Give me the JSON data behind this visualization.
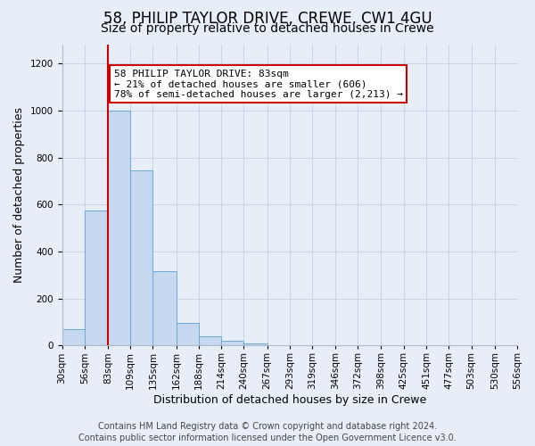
{
  "title": "58, PHILIP TAYLOR DRIVE, CREWE, CW1 4GU",
  "subtitle": "Size of property relative to detached houses in Crewe",
  "xlabel": "Distribution of detached houses by size in Crewe",
  "ylabel": "Number of detached properties",
  "bin_edges": [
    30,
    56,
    83,
    109,
    135,
    162,
    188,
    214,
    240,
    267,
    293,
    319,
    346,
    372,
    398,
    425,
    451,
    477,
    503,
    530,
    556
  ],
  "bar_heights": [
    70,
    575,
    1000,
    745,
    315,
    95,
    40,
    20,
    10,
    0,
    0,
    0,
    0,
    0,
    0,
    0,
    0,
    0,
    0,
    0
  ],
  "bar_color": "#c5d8f0",
  "bar_edge_color": "#6aaad4",
  "property_size": 83,
  "red_line_color": "#cc0000",
  "annotation_line1": "58 PHILIP TAYLOR DRIVE: 83sqm",
  "annotation_line2": "← 21% of detached houses are smaller (606)",
  "annotation_line3": "78% of semi-detached houses are larger (2,213) →",
  "annotation_box_facecolor": "#ffffff",
  "annotation_box_edgecolor": "#cc0000",
  "ylim": [
    0,
    1280
  ],
  "yticks": [
    0,
    200,
    400,
    600,
    800,
    1000,
    1200
  ],
  "tick_labels": [
    "30sqm",
    "56sqm",
    "83sqm",
    "109sqm",
    "135sqm",
    "162sqm",
    "188sqm",
    "214sqm",
    "240sqm",
    "267sqm",
    "293sqm",
    "319sqm",
    "346sqm",
    "372sqm",
    "398sqm",
    "425sqm",
    "451sqm",
    "477sqm",
    "503sqm",
    "530sqm",
    "556sqm"
  ],
  "footer_text": "Contains HM Land Registry data © Crown copyright and database right 2024.\nContains public sector information licensed under the Open Government Licence v3.0.",
  "bg_color": "#e8eef8",
  "plot_bg_color": "#e8eef8",
  "grid_color": "#c8d4e8",
  "title_fontsize": 12,
  "subtitle_fontsize": 10,
  "axis_label_fontsize": 9,
  "tick_fontsize": 7.5,
  "annotation_fontsize": 8,
  "footer_fontsize": 7
}
